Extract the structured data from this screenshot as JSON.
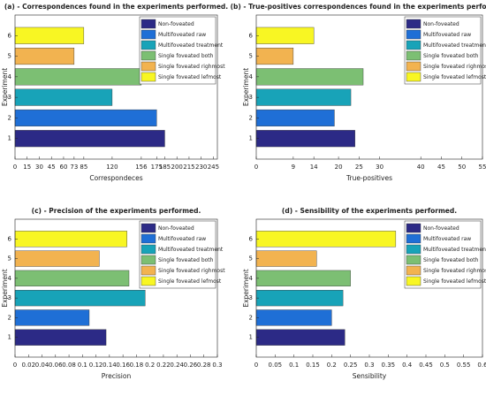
{
  "chart_data": [
    {
      "type": "bar",
      "orientation": "horizontal",
      "title": "(a) - Correspondences found in the experiments performed.",
      "xlabel": "Correspondeces",
      "ylabel": "Experiment",
      "categories": [
        "1",
        "2",
        "3",
        "4",
        "5",
        "6"
      ],
      "values": [
        185,
        175,
        120,
        156,
        73,
        85
      ],
      "colors": [
        "#2c2a86",
        "#1f6fd6",
        "#18a3b8",
        "#7cbf73",
        "#f2b350",
        "#f8f623"
      ],
      "legend": [
        "Non-foveated",
        "Multifoveated raw",
        "Multifoveated treatment",
        "Single foveated both",
        "Single foveated righmost",
        "Single foveated lefmost"
      ],
      "legend_position": "upper right",
      "xlim": [
        0,
        250
      ],
      "xticks": [
        0,
        15,
        30,
        45,
        60,
        73,
        85,
        120,
        156,
        175,
        185,
        200,
        215,
        230,
        245
      ]
    },
    {
      "type": "bar",
      "orientation": "horizontal",
      "title": "(b) - True-positives correspondences found in the experiments performed.",
      "xlabel": "True-positives",
      "ylabel": "Experiment",
      "categories": [
        "1",
        "2",
        "3",
        "4",
        "5",
        "6"
      ],
      "values": [
        24,
        19,
        23,
        26,
        9,
        14
      ],
      "colors": [
        "#2c2a86",
        "#1f6fd6",
        "#18a3b8",
        "#7cbf73",
        "#f2b350",
        "#f8f623"
      ],
      "legend": [
        "Non-foveated",
        "Multifoveated raw",
        "Multifoveated treatment",
        "Single foveated both",
        "Single foveated righmost",
        "Single foveated lefmost"
      ],
      "legend_position": "upper right",
      "xlim": [
        0,
        55
      ],
      "xticks": [
        0,
        9,
        14,
        20,
        25,
        30,
        40,
        45,
        50,
        55
      ]
    },
    {
      "type": "bar",
      "orientation": "horizontal",
      "title": "(c) - Precision of the experiments performed.",
      "xlabel": "Precision",
      "ylabel": "Experiment",
      "categories": [
        "1",
        "2",
        "3",
        "4",
        "5",
        "6"
      ],
      "values": [
        0.135,
        0.11,
        0.193,
        0.169,
        0.125,
        0.166
      ],
      "colors": [
        "#2c2a86",
        "#1f6fd6",
        "#18a3b8",
        "#7cbf73",
        "#f2b350",
        "#f8f623"
      ],
      "legend": [
        "Non-foveated",
        "Multifoveated raw",
        "Multifoveated treatment",
        "Single foveated both",
        "Single foveated righmost",
        "Single foveated lefmost"
      ],
      "legend_position": "upper right",
      "xlim": [
        0,
        0.3
      ],
      "xticks": [
        0,
        0.02,
        0.04,
        0.06,
        0.08,
        0.1,
        0.12,
        0.14,
        0.16,
        0.18,
        0.2,
        0.22,
        0.24,
        0.26,
        0.28,
        0.3
      ]
    },
    {
      "type": "bar",
      "orientation": "horizontal",
      "title": "(d) - Sensibility of the experiments performed.",
      "xlabel": "Sensibility",
      "ylabel": "Experiment",
      "categories": [
        "1",
        "2",
        "3",
        "4",
        "5",
        "6"
      ],
      "values": [
        0.235,
        0.2,
        0.23,
        0.25,
        0.16,
        0.37
      ],
      "colors": [
        "#2c2a86",
        "#1f6fd6",
        "#18a3b8",
        "#7cbf73",
        "#f2b350",
        "#f8f623"
      ],
      "legend": [
        "Non-foveated",
        "Multifoveated raw",
        "Multifoveated treatment",
        "Single foveated both",
        "Single foveated righmost",
        "Single foveated lefmost"
      ],
      "legend_position": "upper right",
      "xlim": [
        0,
        0.6
      ],
      "xticks": [
        0,
        0.05,
        0.1,
        0.15,
        0.2,
        0.25,
        0.3,
        0.35,
        0.4,
        0.45,
        0.5,
        0.55,
        0.6
      ]
    }
  ]
}
